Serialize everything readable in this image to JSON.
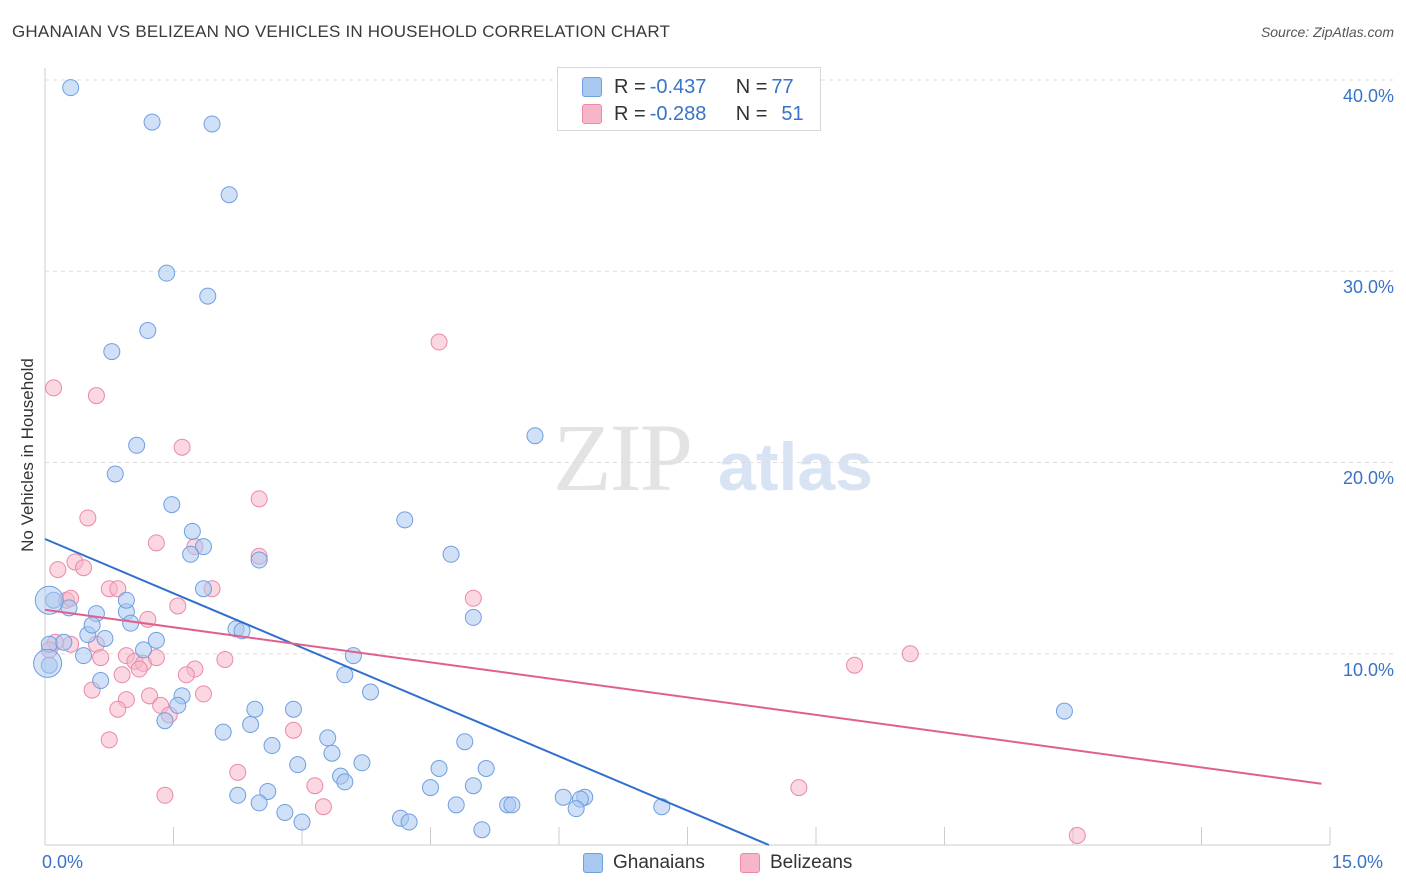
{
  "header": {
    "title": "GHANAIAN VS BELIZEAN NO VEHICLES IN HOUSEHOLD CORRELATION CHART",
    "source": "Source: ZipAtlas.com"
  },
  "watermark": {
    "zip": "ZIP",
    "atlas": "atlas"
  },
  "legend": {
    "rows": [
      {
        "r_label": "R = ",
        "r_value": "-0.437",
        "n_label": "N = ",
        "n_value": "77",
        "color": "#a9c8f0"
      },
      {
        "r_label": "R = ",
        "r_value": "-0.288",
        "n_label": "N = ",
        "n_value": "51",
        "color": "#f6b6c8"
      }
    ]
  },
  "bottom_legend": {
    "ghanaians": "Ghanaians",
    "belizeans": "Belizeans"
  },
  "axes": {
    "ylabel": "No Vehicles in Household",
    "y_ticks": [
      "40.0%",
      "30.0%",
      "20.0%",
      "10.0%"
    ],
    "x_ticks": [
      "0.0%",
      "15.0%"
    ]
  },
  "colors": {
    "blue_fill": "#a9c8f0",
    "blue_stroke": "#6f9fe0",
    "blue_line": "#2f6fcf",
    "pink_fill": "#f6b6c8",
    "pink_stroke": "#ea8aa8",
    "pink_line": "#e0608c"
  },
  "chart_data": {
    "type": "scatter",
    "xlabel": "",
    "ylabel": "No Vehicles in Household",
    "xlim": [
      0,
      15
    ],
    "ylim": [
      0,
      40
    ],
    "x_ticks": [
      0,
      15
    ],
    "y_ticks": [
      10,
      20,
      30,
      40
    ],
    "grid": true,
    "series": [
      {
        "name": "Ghanaians",
        "R": -0.437,
        "N": 77,
        "trend": {
          "x": [
            0,
            8.45
          ],
          "y": [
            16.0,
            0.0
          ]
        },
        "points": [
          [
            0.3,
            39.6
          ],
          [
            1.25,
            37.8
          ],
          [
            1.95,
            37.7
          ],
          [
            2.15,
            34.0
          ],
          [
            1.42,
            29.9
          ],
          [
            1.9,
            28.7
          ],
          [
            1.2,
            26.9
          ],
          [
            0.78,
            25.8
          ],
          [
            1.07,
            20.9
          ],
          [
            0.82,
            19.4
          ],
          [
            5.72,
            21.4
          ],
          [
            1.48,
            17.8
          ],
          [
            4.2,
            17.0
          ],
          [
            1.72,
            16.4
          ],
          [
            1.85,
            15.6
          ],
          [
            2.5,
            14.9
          ],
          [
            1.7,
            15.2
          ],
          [
            4.74,
            15.2
          ],
          [
            0.1,
            12.8
          ],
          [
            0.28,
            12.4
          ],
          [
            0.6,
            12.1
          ],
          [
            0.95,
            12.2
          ],
          [
            0.95,
            12.8
          ],
          [
            1.85,
            13.4
          ],
          [
            5.0,
            11.9
          ],
          [
            0.5,
            11.0
          ],
          [
            0.55,
            11.5
          ],
          [
            1.0,
            11.6
          ],
          [
            2.23,
            11.3
          ],
          [
            2.3,
            11.2
          ],
          [
            0.05,
            10.5
          ],
          [
            0.22,
            10.6
          ],
          [
            0.7,
            10.8
          ],
          [
            1.3,
            10.7
          ],
          [
            0.45,
            9.9
          ],
          [
            0.05,
            9.4
          ],
          [
            1.15,
            10.2
          ],
          [
            3.6,
            9.9
          ],
          [
            3.5,
            8.9
          ],
          [
            0.65,
            8.6
          ],
          [
            3.8,
            8.0
          ],
          [
            1.6,
            7.8
          ],
          [
            1.55,
            7.3
          ],
          [
            2.45,
            7.1
          ],
          [
            2.9,
            7.1
          ],
          [
            1.4,
            6.5
          ],
          [
            2.4,
            6.3
          ],
          [
            2.08,
            5.9
          ],
          [
            3.3,
            5.6
          ],
          [
            4.9,
            5.4
          ],
          [
            2.65,
            5.2
          ],
          [
            3.35,
            4.8
          ],
          [
            2.95,
            4.2
          ],
          [
            3.7,
            4.3
          ],
          [
            4.6,
            4.0
          ],
          [
            5.15,
            4.0
          ],
          [
            3.45,
            3.6
          ],
          [
            3.5,
            3.3
          ],
          [
            5.0,
            3.1
          ],
          [
            4.5,
            3.0
          ],
          [
            2.25,
            2.6
          ],
          [
            2.6,
            2.8
          ],
          [
            6.05,
            2.5
          ],
          [
            6.3,
            2.5
          ],
          [
            6.25,
            2.4
          ],
          [
            2.5,
            2.2
          ],
          [
            4.8,
            2.1
          ],
          [
            5.4,
            2.1
          ],
          [
            5.45,
            2.1
          ],
          [
            7.2,
            2.0
          ],
          [
            6.2,
            1.9
          ],
          [
            2.8,
            1.7
          ],
          [
            3.0,
            1.2
          ],
          [
            4.15,
            1.4
          ],
          [
            4.25,
            1.2
          ],
          [
            5.1,
            0.8
          ],
          [
            11.9,
            7.0
          ]
        ],
        "large_points": [
          [
            0.05,
            12.8
          ],
          [
            0.03,
            9.5
          ]
        ]
      },
      {
        "name": "Belizeans",
        "R": -0.288,
        "N": 51,
        "trend": {
          "x": [
            0,
            14.9
          ],
          "y": [
            12.3,
            3.2
          ]
        },
        "points": [
          [
            0.1,
            23.9
          ],
          [
            0.6,
            23.5
          ],
          [
            4.6,
            26.3
          ],
          [
            1.6,
            20.8
          ],
          [
            2.5,
            18.1
          ],
          [
            0.5,
            17.1
          ],
          [
            1.3,
            15.8
          ],
          [
            1.75,
            15.6
          ],
          [
            2.5,
            15.1
          ],
          [
            0.35,
            14.8
          ],
          [
            0.45,
            14.5
          ],
          [
            0.15,
            14.4
          ],
          [
            0.75,
            13.4
          ],
          [
            0.85,
            13.4
          ],
          [
            1.95,
            13.4
          ],
          [
            5.0,
            12.9
          ],
          [
            0.25,
            12.8
          ],
          [
            0.3,
            12.9
          ],
          [
            1.55,
            12.5
          ],
          [
            1.2,
            11.8
          ],
          [
            0.12,
            10.6
          ],
          [
            0.3,
            10.5
          ],
          [
            0.6,
            10.5
          ],
          [
            2.1,
            9.7
          ],
          [
            0.65,
            9.8
          ],
          [
            0.95,
            9.9
          ],
          [
            1.05,
            9.6
          ],
          [
            1.15,
            9.5
          ],
          [
            1.3,
            9.8
          ],
          [
            1.1,
            9.2
          ],
          [
            1.75,
            9.2
          ],
          [
            1.65,
            8.9
          ],
          [
            0.9,
            8.9
          ],
          [
            0.55,
            8.1
          ],
          [
            1.22,
            7.8
          ],
          [
            1.85,
            7.9
          ],
          [
            0.95,
            7.6
          ],
          [
            0.85,
            7.1
          ],
          [
            1.35,
            7.3
          ],
          [
            1.45,
            6.8
          ],
          [
            2.9,
            6.0
          ],
          [
            0.75,
            5.5
          ],
          [
            2.25,
            3.8
          ],
          [
            3.15,
            3.1
          ],
          [
            1.4,
            2.6
          ],
          [
            3.25,
            2.0
          ],
          [
            9.45,
            9.4
          ],
          [
            10.1,
            10.0
          ],
          [
            8.8,
            3.0
          ],
          [
            12.05,
            0.5
          ],
          [
            0.05,
            10.2
          ]
        ]
      }
    ]
  }
}
